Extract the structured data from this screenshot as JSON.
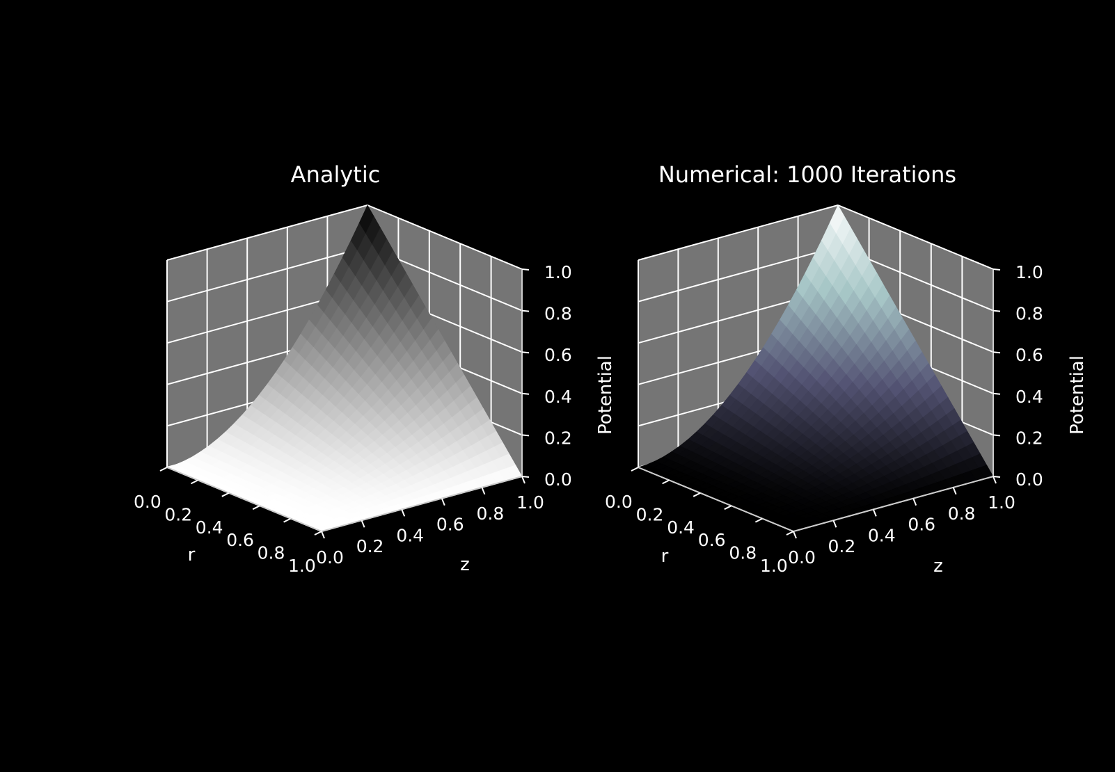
{
  "figure": {
    "background": "#000000",
    "pane_color": "#757575",
    "grid_color": "#ffffff",
    "text_color": "#ffffff"
  },
  "chart_data": [
    {
      "type": "surface3d",
      "title": "Analytic",
      "xlabel": "r",
      "ylabel": "z",
      "zlabel": "Potential",
      "xlim": [
        0,
        1
      ],
      "ylim": [
        0,
        1
      ],
      "zlim": [
        0,
        1
      ],
      "x_ticks": [
        "0.0",
        "0.2",
        "0.4",
        "0.6",
        "0.8",
        "1.0"
      ],
      "y_ticks": [
        "0.0",
        "0.2",
        "0.4",
        "0.6",
        "0.8",
        "1.0"
      ],
      "z_ticks": [
        "0.0",
        "0.2",
        "0.4",
        "0.6",
        "0.8",
        "1.0"
      ],
      "grid": true,
      "colormap": "gray_r",
      "colormap_stops": [
        "#ffffff",
        "#000000"
      ],
      "surface_corners": [
        {
          "r": 0.0,
          "z": 0.0,
          "potential": 0.0
        },
        {
          "r": 1.0,
          "z": 0.0,
          "potential": 0.0
        },
        {
          "r": 1.0,
          "z": 1.0,
          "potential": 0.0
        },
        {
          "r": 0.0,
          "z": 1.0,
          "potential": 1.0
        }
      ]
    },
    {
      "type": "surface3d",
      "title": "Numerical: 1000 Iterations",
      "xlabel": "r",
      "ylabel": "z",
      "zlabel": "Potential",
      "xlim": [
        0,
        1
      ],
      "ylim": [
        0,
        1
      ],
      "zlim": [
        0,
        1
      ],
      "x_ticks": [
        "0.0",
        "0.2",
        "0.4",
        "0.6",
        "0.8",
        "1.0"
      ],
      "y_ticks": [
        "0.0",
        "0.2",
        "0.4",
        "0.6",
        "0.8",
        "1.0"
      ],
      "z_ticks": [
        "0.0",
        "0.2",
        "0.4",
        "0.6",
        "0.8",
        "1.0"
      ],
      "grid": true,
      "colormap": "bone",
      "colormap_stops": [
        "#000000",
        "#545474",
        "#a7c7c7",
        "#ffffff"
      ],
      "surface_corners": [
        {
          "r": 0.0,
          "z": 0.0,
          "potential": 0.0
        },
        {
          "r": 1.0,
          "z": 0.0,
          "potential": 0.0
        },
        {
          "r": 1.0,
          "z": 1.0,
          "potential": 0.0
        },
        {
          "r": 0.0,
          "z": 1.0,
          "potential": 1.0
        }
      ]
    }
  ]
}
